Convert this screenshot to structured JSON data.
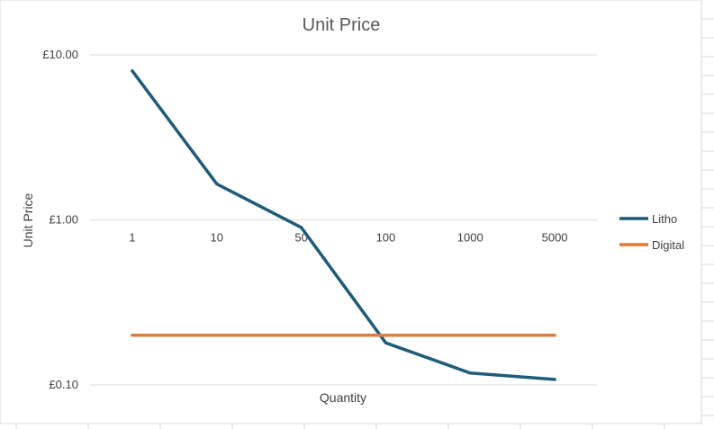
{
  "chart_data": {
    "type": "line",
    "title": "Unit Price",
    "xlabel": "Quantity",
    "ylabel": "Unit Price",
    "categories": [
      "1",
      "10",
      "50",
      "100",
      "1000",
      "5000"
    ],
    "y_scale": "log",
    "ylim": [
      0.1,
      10
    ],
    "yticks": [
      {
        "value": 10,
        "label": "£10.00"
      },
      {
        "value": 1,
        "label": "£1.00"
      },
      {
        "value": 0.1,
        "label": "£0.10"
      }
    ],
    "grid": true,
    "legend_position": "right",
    "series": [
      {
        "name": "Litho",
        "color": "#1f5c77",
        "values": [
          8.0,
          1.65,
          0.9,
          0.18,
          0.118,
          0.108
        ]
      },
      {
        "name": "Digital",
        "color": "#e07b39",
        "values": [
          0.2,
          0.2,
          0.2,
          0.2,
          0.2,
          0.2
        ]
      }
    ]
  }
}
